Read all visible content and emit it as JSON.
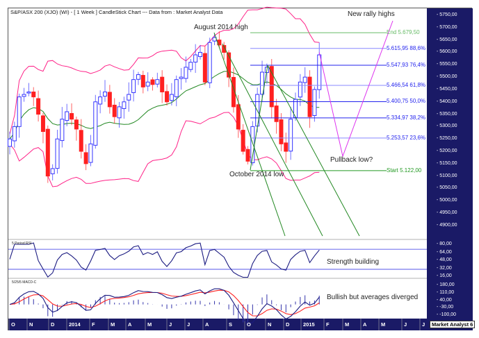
{
  "header": {
    "title": "S&P/ASX 200 (XJO) (WI) -  [ 1 Week ] CandleStick Chart --- Data from : Market Analyst Data"
  },
  "chart_data": [
    {
      "type": "candlestick",
      "title": "S&P/ASX 200 (XJO) (WI) -  [ 1 Week ] CandleStick Chart --- Data from : Market Analyst Data",
      "interval": "1 Week",
      "ylim": [
        4850,
        5780
      ],
      "y_ticks": [
        "5750,00",
        "5700,00",
        "5650,00",
        "5600,00",
        "5550,00",
        "5500,00",
        "5450,00",
        "5400,00",
        "5350,00",
        "5300,00",
        "5250,00",
        "5200,00",
        "5150,00",
        "5100,00",
        "5050,00",
        "5000,00",
        "4950,00",
        "4900,00"
      ],
      "x_ticks": [
        "O",
        "N",
        "D",
        "2014",
        "F",
        "M",
        "A",
        "M",
        "J",
        "J",
        "A",
        "S",
        "O",
        "N",
        "D",
        "2015",
        "F",
        "M",
        "A",
        "M",
        "J",
        "J"
      ],
      "closes": [
        5250,
        5300,
        5420,
        5430,
        5440,
        5420,
        5350,
        5280,
        5100,
        5130,
        5250,
        5330,
        5360,
        5330,
        5290,
        5200,
        5150,
        5230,
        5400,
        5420,
        5440,
        5380,
        5340,
        5380,
        5400,
        5430,
        5490,
        5510,
        5460,
        5480,
        5470,
        5490,
        5440,
        5400,
        5430,
        5490,
        5500,
        5540,
        5560,
        5590,
        5600,
        5480,
        5640,
        5660,
        5630,
        5600,
        5500,
        5380,
        5290,
        5200,
        5160,
        5300,
        5430,
        5520,
        5540,
        5380,
        5320,
        5230,
        5200,
        5330,
        5410,
        5480,
        5500,
        5340,
        5450,
        5590
      ],
      "overlays": [
        "20 period moving average",
        "Bollinger bands"
      ],
      "fibonacci": {
        "levels": [
          {
            "label": "End 5.679,50",
            "value": 5679.5,
            "color": "#66bb66"
          },
          {
            "label": "5.615,95 88,6%",
            "value": 5615.95,
            "color": "#8888ff"
          },
          {
            "label": "5.547,93 76,4%",
            "value": 5547.93,
            "color": "#2222ee"
          },
          {
            "label": "5.466,54 61,8%",
            "value": 5466.54,
            "color": "#8888ff"
          },
          {
            "label": "5.400,75 50,0%",
            "value": 5400.75,
            "color": "#2222ee"
          },
          {
            "label": "5.334,97 38,2%",
            "value": 5334.97,
            "color": "#2222ee"
          },
          {
            "label": "5.253,57 23,6%",
            "value": 5253.57,
            "color": "#8888ff"
          },
          {
            "label": "Start 5.122,00",
            "value": 5122.0,
            "color": "#229922"
          }
        ]
      },
      "annotations": [
        "August 2014 high",
        "October 2014 low",
        "New rally highs",
        "Pullback low?"
      ],
      "colors": {
        "up": "#3333ff",
        "down": "#ff2020",
        "bands": "#ff2288",
        "ma": "#228822",
        "projection": "#dd33ee",
        "fan": "#228822"
      }
    },
    {
      "type": "line",
      "label": "5 Period RSI",
      "y_ticks": [
        "80,00",
        "64,00",
        "48,00",
        "32,00",
        "16,00"
      ],
      "ylim": [
        10,
        86
      ],
      "reference_lines": [
        70,
        30
      ],
      "annotation": "Strength building",
      "colors": {
        "line": "#1a1a80",
        "reference": "#7777ee"
      }
    },
    {
      "type": "line",
      "label": "5/25/5 MACD-C",
      "y_ticks": [
        "180,00",
        "110,00",
        "40,00",
        "-30,00",
        "-100,00"
      ],
      "ylim": [
        -120,
        200
      ],
      "annotation": "Bullish but averages diverged",
      "colors": {
        "macd": "#1a1a80",
        "signal": "#ff2020",
        "histogram": "#3333aa"
      }
    }
  ],
  "footer": {
    "badge": "Market Analyst 6"
  }
}
